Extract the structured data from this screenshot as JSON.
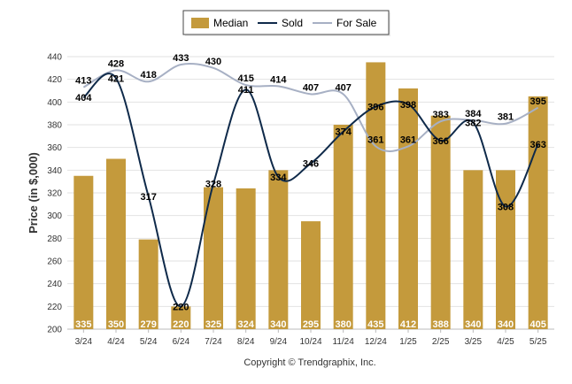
{
  "chart_data": {
    "type": "bar",
    "categories": [
      "3/24",
      "4/24",
      "5/24",
      "6/24",
      "7/24",
      "8/24",
      "9/24",
      "10/24",
      "11/24",
      "12/24",
      "1/25",
      "2/25",
      "3/25",
      "4/25",
      "5/25"
    ],
    "ylabel": "Price (in $,000)",
    "ylim": [
      200,
      440
    ],
    "yticks": [
      200,
      220,
      240,
      260,
      280,
      300,
      320,
      340,
      360,
      380,
      400,
      420,
      440
    ],
    "grid": true,
    "legend_position": "top-center",
    "credit": "Copyright © Trendgraphix, Inc.",
    "series": [
      {
        "name": "Median",
        "kind": "bar",
        "color": "#c49a3c",
        "values": [
          335,
          350,
          279,
          220,
          325,
          324,
          340,
          295,
          380,
          435,
          412,
          388,
          340,
          340,
          405
        ]
      },
      {
        "name": "Sold",
        "kind": "line",
        "color": "#0f2a4a",
        "values": [
          404,
          421,
          317,
          220,
          328,
          411,
          334,
          346,
          374,
          396,
          398,
          366,
          382,
          308,
          363
        ]
      },
      {
        "name": "For Sale",
        "kind": "line",
        "color": "#a7b0c4",
        "values": [
          413,
          428,
          418,
          433,
          430,
          415,
          414,
          407,
          407,
          361,
          361,
          383,
          384,
          381,
          395
        ]
      }
    ]
  }
}
